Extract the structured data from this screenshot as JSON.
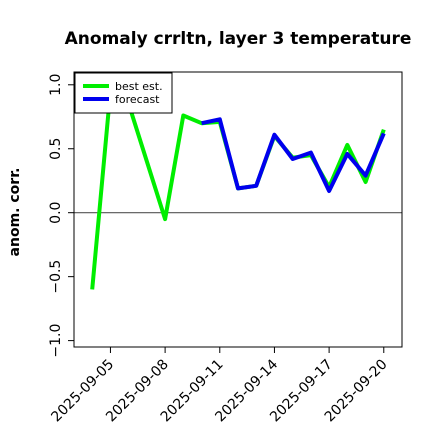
{
  "chart_data": {
    "type": "line",
    "title": "Anomaly crrltn, layer 3 temperature",
    "xlabel": "",
    "ylabel": "anom. corr.",
    "ylim": [
      -1.05,
      1.1
    ],
    "xlim": [
      "2025-09-03",
      "2025-09-21"
    ],
    "yticks": [
      -1.0,
      -0.5,
      0.0,
      0.5,
      1.0
    ],
    "ytick_labels": [
      "−1.0",
      "−0.5",
      "0.0",
      "0.5",
      "1.0"
    ],
    "xticks": [
      "2025-09-05",
      "2025-09-08",
      "2025-09-11",
      "2025-09-14",
      "2025-09-17",
      "2025-09-20"
    ],
    "highlight_tick": "2025-09-11",
    "highlight_color": "#228b22",
    "reference_line": 0.0,
    "legend_position": "top-left",
    "series": [
      {
        "name": "best est.",
        "color": "#00ee00",
        "x": [
          "2025-09-04",
          "2025-09-05",
          "2025-09-06",
          "2025-09-08",
          "2025-09-09",
          "2025-09-10",
          "2025-09-11"
        ],
        "values": [
          -0.6,
          0.95,
          0.85,
          -0.05,
          0.76,
          0.7,
          0.71
        ]
      },
      {
        "name": "best est.",
        "color": "#00ee00",
        "x": [
          "2025-09-11",
          "2025-09-12",
          "2025-09-13",
          "2025-09-14",
          "2025-09-15",
          "2025-09-16",
          "2025-09-17",
          "2025-09-18",
          "2025-09-19",
          "2025-09-20"
        ],
        "values": [
          0.71,
          0.19,
          0.21,
          0.6,
          0.43,
          0.45,
          0.2,
          0.53,
          0.24,
          0.65
        ]
      },
      {
        "name": "forecast",
        "color": "#0000ee",
        "x": [
          "2025-09-10",
          "2025-09-11",
          "2025-09-12",
          "2025-09-13",
          "2025-09-14",
          "2025-09-15",
          "2025-09-16",
          "2025-09-17",
          "2025-09-18",
          "2025-09-19",
          "2025-09-20"
        ],
        "values": [
          0.7,
          0.73,
          0.19,
          0.21,
          0.61,
          0.42,
          0.47,
          0.17,
          0.46,
          0.29,
          0.62
        ]
      }
    ],
    "legend": [
      {
        "label": "best est.",
        "color": "#00ee00"
      },
      {
        "label": "forecast",
        "color": "#0000ee"
      }
    ]
  }
}
